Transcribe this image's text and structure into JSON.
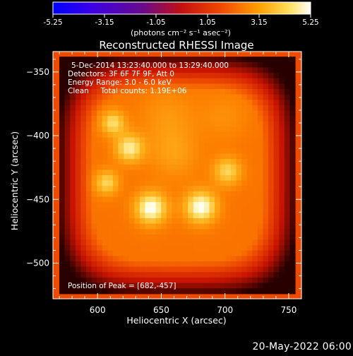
{
  "chart_data": {
    "type": "heatmap",
    "title": "Reconstructed RHESSI Image",
    "xlabel": "Heliocentric X (arcsec)",
    "ylabel": "Heliocentric Y (arcsec)",
    "xlim": [
      565,
      760
    ],
    "ylim": [
      -528,
      -334
    ],
    "x_ticks": [
      600,
      650,
      700,
      750
    ],
    "y_ticks": [
      -350,
      -400,
      -450,
      -500
    ],
    "colorbar": {
      "range": [
        -5.25,
        5.25
      ],
      "ticks": [
        "-5.25",
        "-3.15",
        "-1.05",
        "1.05",
        "3.15",
        "5.25"
      ],
      "units_label": "(photons cm⁻² s⁻¹ asec⁻²)",
      "colormap": "blue-purple-red-orange-yellow-white"
    },
    "info_lines": [
      "5-Dec-2014 13:23:40.000 to 13:29:40.000",
      "Detectors: 3F 6F 7F 9F, Att 0",
      "Energy Range: 3.0 - 6.0 keV",
      "Clean     Total counts: 1.19E+06"
    ],
    "peak_label": "Position of Peak = [682,-457]",
    "image_extent": {
      "x": [
        570,
        755
      ],
      "y": [
        -524,
        -338
      ]
    },
    "sources": [
      {
        "x": 642,
        "y": -457,
        "amp": 1.05,
        "sigma": 9
      },
      {
        "x": 681,
        "y": -456,
        "amp": 1.05,
        "sigma": 9
      },
      {
        "x": 625,
        "y": -410,
        "amp": 0.85,
        "sigma": 8
      },
      {
        "x": 612,
        "y": -390,
        "amp": 0.75,
        "sigma": 7
      },
      {
        "x": 702,
        "y": -428,
        "amp": 0.7,
        "sigma": 8
      },
      {
        "x": 607,
        "y": -437,
        "amp": 0.7,
        "sigma": 7
      },
      {
        "x": 660,
        "y": -415,
        "amp": 0.3,
        "sigma": 14
      },
      {
        "x": 655,
        "y": -385,
        "amp": 0.25,
        "sigma": 16
      },
      {
        "x": 700,
        "y": -385,
        "amp": 0.2,
        "sigma": 14
      }
    ]
  },
  "timestamp": "20-May-2022 06:00"
}
